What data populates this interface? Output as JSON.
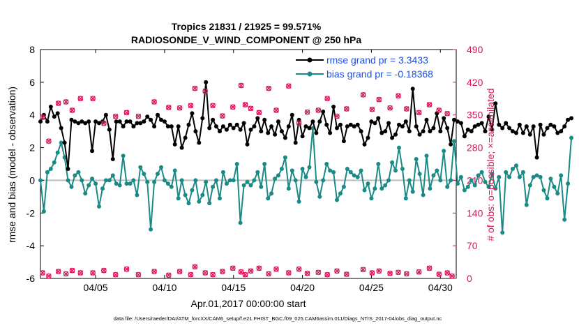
{
  "chart_data": {
    "type": "line",
    "title_line1": "Tropics 21831 / 21925 = 99.571%",
    "title_line2": "RADIOSONDE_V_WIND_COMPONENT @ 250 hPa",
    "xlabel": "Apr.01,2017 00:00:00 start",
    "ylabel_left": "rmse and bias (model - observation)",
    "ylabel_right": "# of obs: o=possible; ×=assimilated",
    "footnote": "data file: /Users/raeder/DAI/ATM_forcXX/CAM6_setup/f.e21.FHIST_BGC.f09_025.CAM6assim.011/Diags_NTrS_2017-04/obs_diag_output.nc",
    "xlim": [
      1.0,
      31.15
    ],
    "ylim_left": [
      -6,
      8
    ],
    "ylim_right": [
      0,
      490
    ],
    "xticks": [
      5,
      10,
      15,
      20,
      25,
      30
    ],
    "xtick_labels": [
      "04/05",
      "04/10",
      "04/15",
      "04/20",
      "04/25",
      "04/30"
    ],
    "yticks_left": [
      -6,
      -4,
      -2,
      0,
      2,
      4,
      6,
      8
    ],
    "yticks_right": [
      0,
      70,
      140,
      210,
      280,
      350,
      420,
      490
    ],
    "colors": {
      "rmse": "#000000",
      "bias": "#1a8a86",
      "obs": "#d6185a",
      "zero_line": "#bdbdbd",
      "legend_text": "#1f4fe0"
    },
    "legend": [
      {
        "key": "rmse",
        "label": "rmse grand pr = 3.3433"
      },
      {
        "key": "bias",
        "label": "bias grand pr = -0.18368"
      }
    ],
    "series": [
      {
        "name": "rmse",
        "x_start": 1.0,
        "dx": 0.25,
        "values": [
          3.6,
          4.0,
          3.6,
          4.5,
          3.9,
          4.1,
          3.2,
          2.3,
          0.7,
          3.7,
          3.6,
          3.5,
          3.6,
          3.5,
          3.6,
          1.8,
          3.6,
          3.5,
          3.6,
          4.0,
          3.1,
          1.3,
          3.6,
          3.6,
          3.3,
          3.6,
          3.6,
          3.3,
          3.5,
          3.5,
          3.6,
          3.9,
          3.7,
          3.3,
          4.0,
          3.7,
          3.6,
          3.3,
          3.3,
          2.2,
          3.3,
          2.0,
          2.6,
          3.4,
          4.1,
          3.0,
          2.3,
          3.8,
          6.0,
          3.2,
          3.7,
          3.3,
          3.0,
          3.3,
          3.1,
          3.4,
          3.2,
          3.4,
          3.1,
          3.5,
          2.2,
          3.1,
          3.3,
          3.8,
          3.0,
          3.7,
          2.9,
          3.3,
          2.8,
          3.6,
          3.0,
          2.6,
          3.3,
          4.0,
          2.3,
          3.7,
          2.7,
          3.3,
          3.2,
          3.6,
          2.9,
          3.6,
          4.2,
          3.4,
          2.9,
          4.5,
          3.2,
          3.4,
          2.4,
          3.3,
          3.4,
          3.3,
          3.4,
          3.0,
          2.2,
          2.6,
          3.6,
          3.5,
          3.8,
          2.9,
          3.0,
          3.5,
          2.6,
          2.8,
          3.4,
          3.3,
          3.6,
          3.0,
          5.6,
          3.3,
          2.8,
          3.0,
          3.7,
          3.0,
          3.2,
          4.1,
          3.0,
          3.8,
          3.2,
          2.2,
          3.7,
          3.6,
          3.5,
          2.7,
          3.1,
          3.0,
          3.3,
          3.4,
          3.5,
          3.0,
          3.9,
          3.1,
          4.7,
          3.4,
          3.2,
          3.5,
          3.2,
          3.0,
          2.9,
          3.4,
          2.9,
          3.3,
          2.8,
          3.3,
          1.4,
          3.4,
          2.8,
          3.2,
          3.4,
          3.3,
          2.9,
          3.0,
          3.3,
          3.7,
          3.8
        ]
      },
      {
        "name": "bias",
        "x_start": 1.0,
        "dx": 0.25,
        "values": [
          0.0,
          -1.9,
          0.5,
          0.7,
          1.1,
          1.7,
          2.3,
          1.4,
          0.0,
          -0.4,
          0.3,
          0.5,
          0.0,
          -0.8,
          -0.3,
          0.1,
          -0.2,
          -1.6,
          -0.5,
          0.0,
          0.0,
          0.3,
          -0.2,
          -0.3,
          1.5,
          -0.2,
          -0.2,
          0.0,
          -0.9,
          0.8,
          0.4,
          -0.1,
          -3.0,
          -0.1,
          0.4,
          0.8,
          0.0,
          -0.2,
          -0.4,
          0.6,
          -1.1,
          0.0,
          -0.9,
          -1.4,
          -0.6,
          0.0,
          -1.3,
          -0.9,
          -0.1,
          -1.4,
          -0.4,
          0.0,
          -1.1,
          0.5,
          -0.2,
          0.0,
          0.0,
          1.0,
          -2.6,
          -0.3,
          -0.1,
          -0.3,
          0.0,
          0.5,
          -0.4,
          1.0,
          -1.1,
          -0.8,
          0.1,
          0.3,
          0.7,
          1.4,
          -0.5,
          0.6,
          0.0,
          -1.3,
          0.7,
          0.2,
          0.8,
          3.2,
          -0.1,
          -1.0,
          0.0,
          1.0,
          0.6,
          0.5,
          -1.2,
          -0.8,
          -0.4,
          0.7,
          0.5,
          0.3,
          0.2,
          0.6,
          -0.6,
          -0.2,
          -1.1,
          -0.5,
          1.0,
          -0.5,
          -0.3,
          0.0,
          1.1,
          0.6,
          2.0,
          0.7,
          -1.1,
          0.0,
          -0.7,
          1.3,
          0.4,
          -0.9,
          1.5,
          -0.5,
          0.3,
          0.6,
          0.0,
          1.8,
          -0.4,
          0.0,
          2.4,
          -0.2,
          0.2,
          -0.6,
          -0.4,
          0.0,
          -0.3,
          0.3,
          0.5,
          -0.1,
          -0.4,
          0.4,
          -0.5,
          0.2,
          -3.2,
          0.5,
          0.2,
          0.7,
          0.9,
          0.2,
          0.5,
          -1.5,
          -0.3,
          0.2,
          0.3,
          0.2,
          -0.6,
          -1.1,
          0.1,
          -0.4,
          -0.8,
          0.3,
          -2.4,
          -0.2,
          2.6
        ]
      },
      {
        "name": "obs_possible",
        "dx": 1.0,
        "marker": "o",
        "axis": "right",
        "points": [
          [
            1.15,
            345
          ],
          [
            1.6,
            294
          ],
          [
            2.3,
            375
          ],
          [
            2.85,
            378
          ],
          [
            3.3,
            360
          ],
          [
            3.9,
            385
          ],
          [
            4.8,
            385
          ],
          [
            5.6,
            332
          ],
          [
            6.45,
            347
          ],
          [
            7.25,
            355
          ],
          [
            8.1,
            347
          ],
          [
            9.25,
            378
          ],
          [
            10.3,
            366
          ],
          [
            11.1,
            365
          ],
          [
            11.9,
            370
          ],
          [
            12.2,
            407
          ],
          [
            12.95,
            401
          ],
          [
            13.5,
            370
          ],
          [
            14.2,
            348
          ],
          [
            14.95,
            367
          ],
          [
            15.55,
            413
          ],
          [
            15.85,
            372
          ],
          [
            16.25,
            364
          ],
          [
            16.85,
            355
          ],
          [
            17.55,
            407
          ],
          [
            18.1,
            360
          ],
          [
            19.0,
            412
          ],
          [
            19.75,
            333
          ],
          [
            20.35,
            356
          ],
          [
            21.15,
            360
          ],
          [
            21.8,
            385
          ],
          [
            22.5,
            347
          ],
          [
            23.2,
            363
          ],
          [
            24.4,
            393
          ],
          [
            25.05,
            362
          ],
          [
            25.55,
            383
          ],
          [
            26.35,
            365
          ],
          [
            26.95,
            391
          ],
          [
            27.55,
            363
          ],
          [
            28.45,
            355
          ],
          [
            29.2,
            372
          ],
          [
            29.9,
            360
          ],
          [
            30.5,
            353
          ]
        ]
      },
      {
        "name": "obs_possible_lowfreq",
        "marker": "o",
        "axis": "right",
        "points": [
          [
            1.15,
            12
          ],
          [
            1.6,
            5
          ],
          [
            2.3,
            15
          ],
          [
            2.85,
            10
          ],
          [
            3.3,
            17
          ],
          [
            3.9,
            12
          ],
          [
            4.8,
            12
          ],
          [
            5.6,
            17
          ],
          [
            6.45,
            8
          ],
          [
            7.25,
            20
          ],
          [
            8.1,
            8
          ],
          [
            9.25,
            15
          ],
          [
            10.3,
            7
          ],
          [
            11.1,
            15
          ],
          [
            11.9,
            8
          ],
          [
            12.2,
            25
          ],
          [
            12.95,
            12
          ],
          [
            13.5,
            8
          ],
          [
            14.2,
            15
          ],
          [
            14.95,
            22
          ],
          [
            15.55,
            14
          ],
          [
            15.85,
            8
          ],
          [
            16.25,
            16
          ],
          [
            16.85,
            22
          ],
          [
            17.55,
            10
          ],
          [
            18.1,
            20
          ],
          [
            19.0,
            12
          ],
          [
            19.75,
            20
          ],
          [
            20.35,
            11
          ],
          [
            21.15,
            13
          ],
          [
            21.8,
            8
          ],
          [
            22.5,
            16
          ],
          [
            23.2,
            9
          ],
          [
            24.4,
            19
          ],
          [
            25.05,
            12
          ],
          [
            25.55,
            16
          ],
          [
            26.35,
            11
          ],
          [
            26.95,
            13
          ],
          [
            27.55,
            10
          ],
          [
            28.45,
            14
          ],
          [
            29.2,
            22
          ],
          [
            29.9,
            9
          ],
          [
            30.5,
            12
          ],
          [
            30.85,
            5
          ]
        ]
      }
    ]
  }
}
